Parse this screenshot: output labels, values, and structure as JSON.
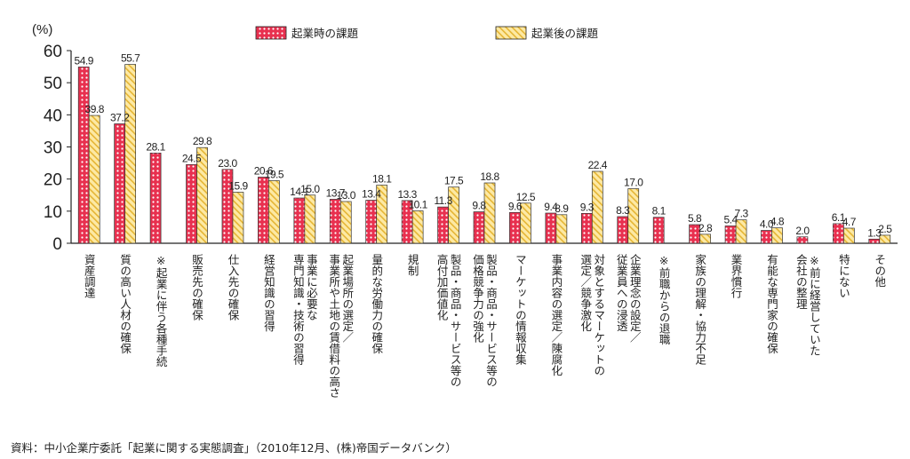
{
  "chart_data": {
    "type": "bar",
    "unit_label": "(%)",
    "ylim": [
      0,
      60
    ],
    "y_ticks": [
      "0",
      "10",
      "20",
      "30",
      "40",
      "50",
      "60"
    ],
    "grid": false,
    "legend_position": "top",
    "categories": [
      "資産調達",
      "質の高い人材の確保",
      "※起業に伴う各種手続",
      "販売先の確保",
      "仕入先の確保",
      "経営知識の習得",
      "事業に必要な専門知識・技術の習得",
      "起業場所の選定／事業所や土地の賃借料の高さ",
      "量的な労働力の確保",
      "規制",
      "製品・商品・サービス等の高付加価値化",
      "製品・商品・サービス等の価格競争力の強化",
      "マーケットの情報収集",
      "事業内容の選定／陳腐化",
      "対象とするマーケットの選定／競争激化",
      "企業理念の設定／従業員への浸透",
      "※前職からの退職",
      "家族の理解・協力不足",
      "業界慣行",
      "有能な専門家の確保",
      "※前に経営していた会社の整理",
      "特にない",
      "その他"
    ],
    "category_lines": [
      [
        "資産調達"
      ],
      [
        "質の高い人材の確保"
      ],
      [
        "※起業に伴う各種手続"
      ],
      [
        "販売先の確保"
      ],
      [
        "仕入先の確保"
      ],
      [
        "経営知識の習得"
      ],
      [
        "事業に必要な",
        "専門知識・技術の習得"
      ],
      [
        "起業場所の選定／",
        "事業所や土地の賃借料の高さ"
      ],
      [
        "量的な労働力の確保"
      ],
      [
        "規制"
      ],
      [
        "製品・商品・サービス等の",
        "高付加価値化"
      ],
      [
        "製品・商品・サービス等の",
        "価格競争力の強化"
      ],
      [
        "マーケットの情報収集"
      ],
      [
        "事業内容の選定／陳腐化"
      ],
      [
        "対象とするマーケットの",
        "選定／競争激化"
      ],
      [
        "企業理念の設定／",
        "従業員への浸透"
      ],
      [
        "※前職からの退職"
      ],
      [
        "家族の理解・協力不足"
      ],
      [
        "業界慣行"
      ],
      [
        "有能な専門家の確保"
      ],
      [
        "※前に経営していた",
        "会社の整理"
      ],
      [
        "特にない"
      ],
      [
        "その他"
      ]
    ],
    "series": [
      {
        "name": "起業時の課題",
        "values": [
          54.9,
          37.2,
          28.1,
          24.5,
          23.0,
          20.6,
          14.1,
          13.7,
          13.4,
          13.3,
          11.3,
          9.8,
          9.6,
          9.4,
          9.3,
          8.3,
          8.1,
          5.8,
          5.4,
          4.0,
          2.0,
          6.1,
          1.3
        ],
        "labels": [
          "54.9",
          "37.2",
          "28.1",
          "24.5",
          "23.0",
          "20.6",
          "14.1",
          "13.7",
          "13.4",
          "13.3",
          "11.3",
          "9.8",
          "9.6",
          "9.4",
          "9.3",
          "8.3",
          "8.1",
          "5.8",
          "5.4",
          "4.0",
          "2.0",
          "6.1",
          "1.3"
        ]
      },
      {
        "name": "起業後の課題",
        "values": [
          39.8,
          55.7,
          null,
          29.8,
          15.9,
          19.5,
          15.0,
          13.0,
          18.1,
          10.1,
          17.5,
          18.8,
          12.5,
          8.9,
          22.4,
          17.0,
          null,
          2.8,
          7.3,
          4.8,
          null,
          4.7,
          2.5
        ],
        "labels": [
          "39.8",
          "55.7",
          "",
          "29.8",
          "15.9",
          "19.5",
          "15.0",
          "13.0",
          "18.1",
          "10.1",
          "17.5",
          "18.8",
          "12.5",
          "8.9",
          "22.4",
          "17.0",
          "",
          "2.8",
          "7.3",
          "4.8",
          "",
          "4.7",
          "2.5"
        ]
      }
    ],
    "colors": {
      "series1_fill": "#e8304f",
      "series1_dots": "#ffffff",
      "series2_fill": "#fde9a4",
      "series2_hatch": "#e5b534",
      "axis": "#222222"
    }
  },
  "source_text": "資料：中小企業庁委託「起業に関する実態調査」（2010年12月、(株)帝国データバンク）"
}
